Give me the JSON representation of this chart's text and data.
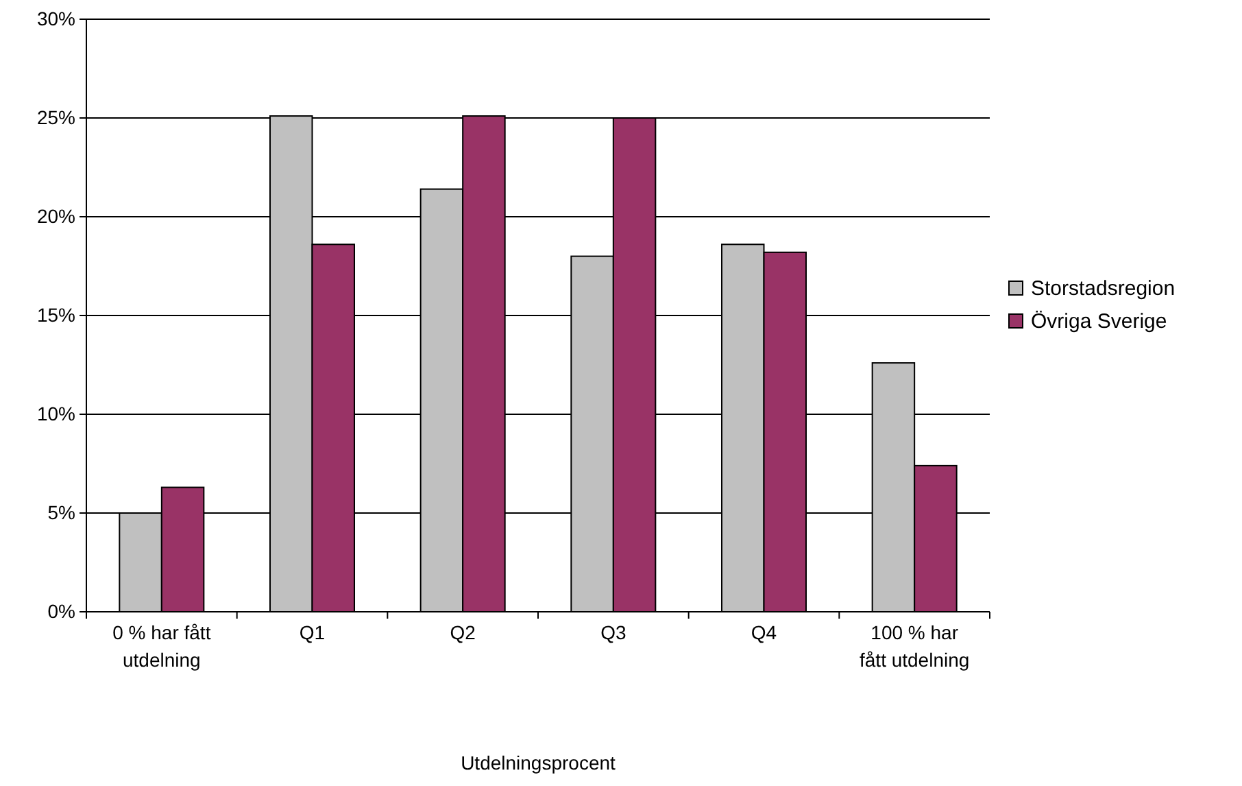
{
  "chart_data": {
    "type": "bar",
    "xlabel": "Utdelningsprocent",
    "categories": [
      "0 % har fått utdelning",
      "Q1",
      "Q2",
      "Q3",
      "Q4",
      "100 % har fått utdelning"
    ],
    "series": [
      {
        "name": "Storstadsregion",
        "color": "#c0c0c0",
        "values": [
          5.0,
          25.1,
          21.4,
          18.0,
          18.6,
          12.6
        ]
      },
      {
        "name": "Övriga Sverige",
        "color": "#993366",
        "values": [
          6.3,
          18.6,
          25.1,
          25.0,
          18.2,
          7.4
        ]
      }
    ],
    "ylim": [
      0,
      30
    ],
    "yticks": [
      {
        "value": 0,
        "label": "0%"
      },
      {
        "value": 5,
        "label": "5%"
      },
      {
        "value": 10,
        "label": "10%"
      },
      {
        "value": 15,
        "label": "15%"
      },
      {
        "value": 20,
        "label": "20%"
      },
      {
        "value": 25,
        "label": "25%"
      },
      {
        "value": 30,
        "label": "30%"
      }
    ],
    "grid": "y",
    "legend": "right"
  }
}
